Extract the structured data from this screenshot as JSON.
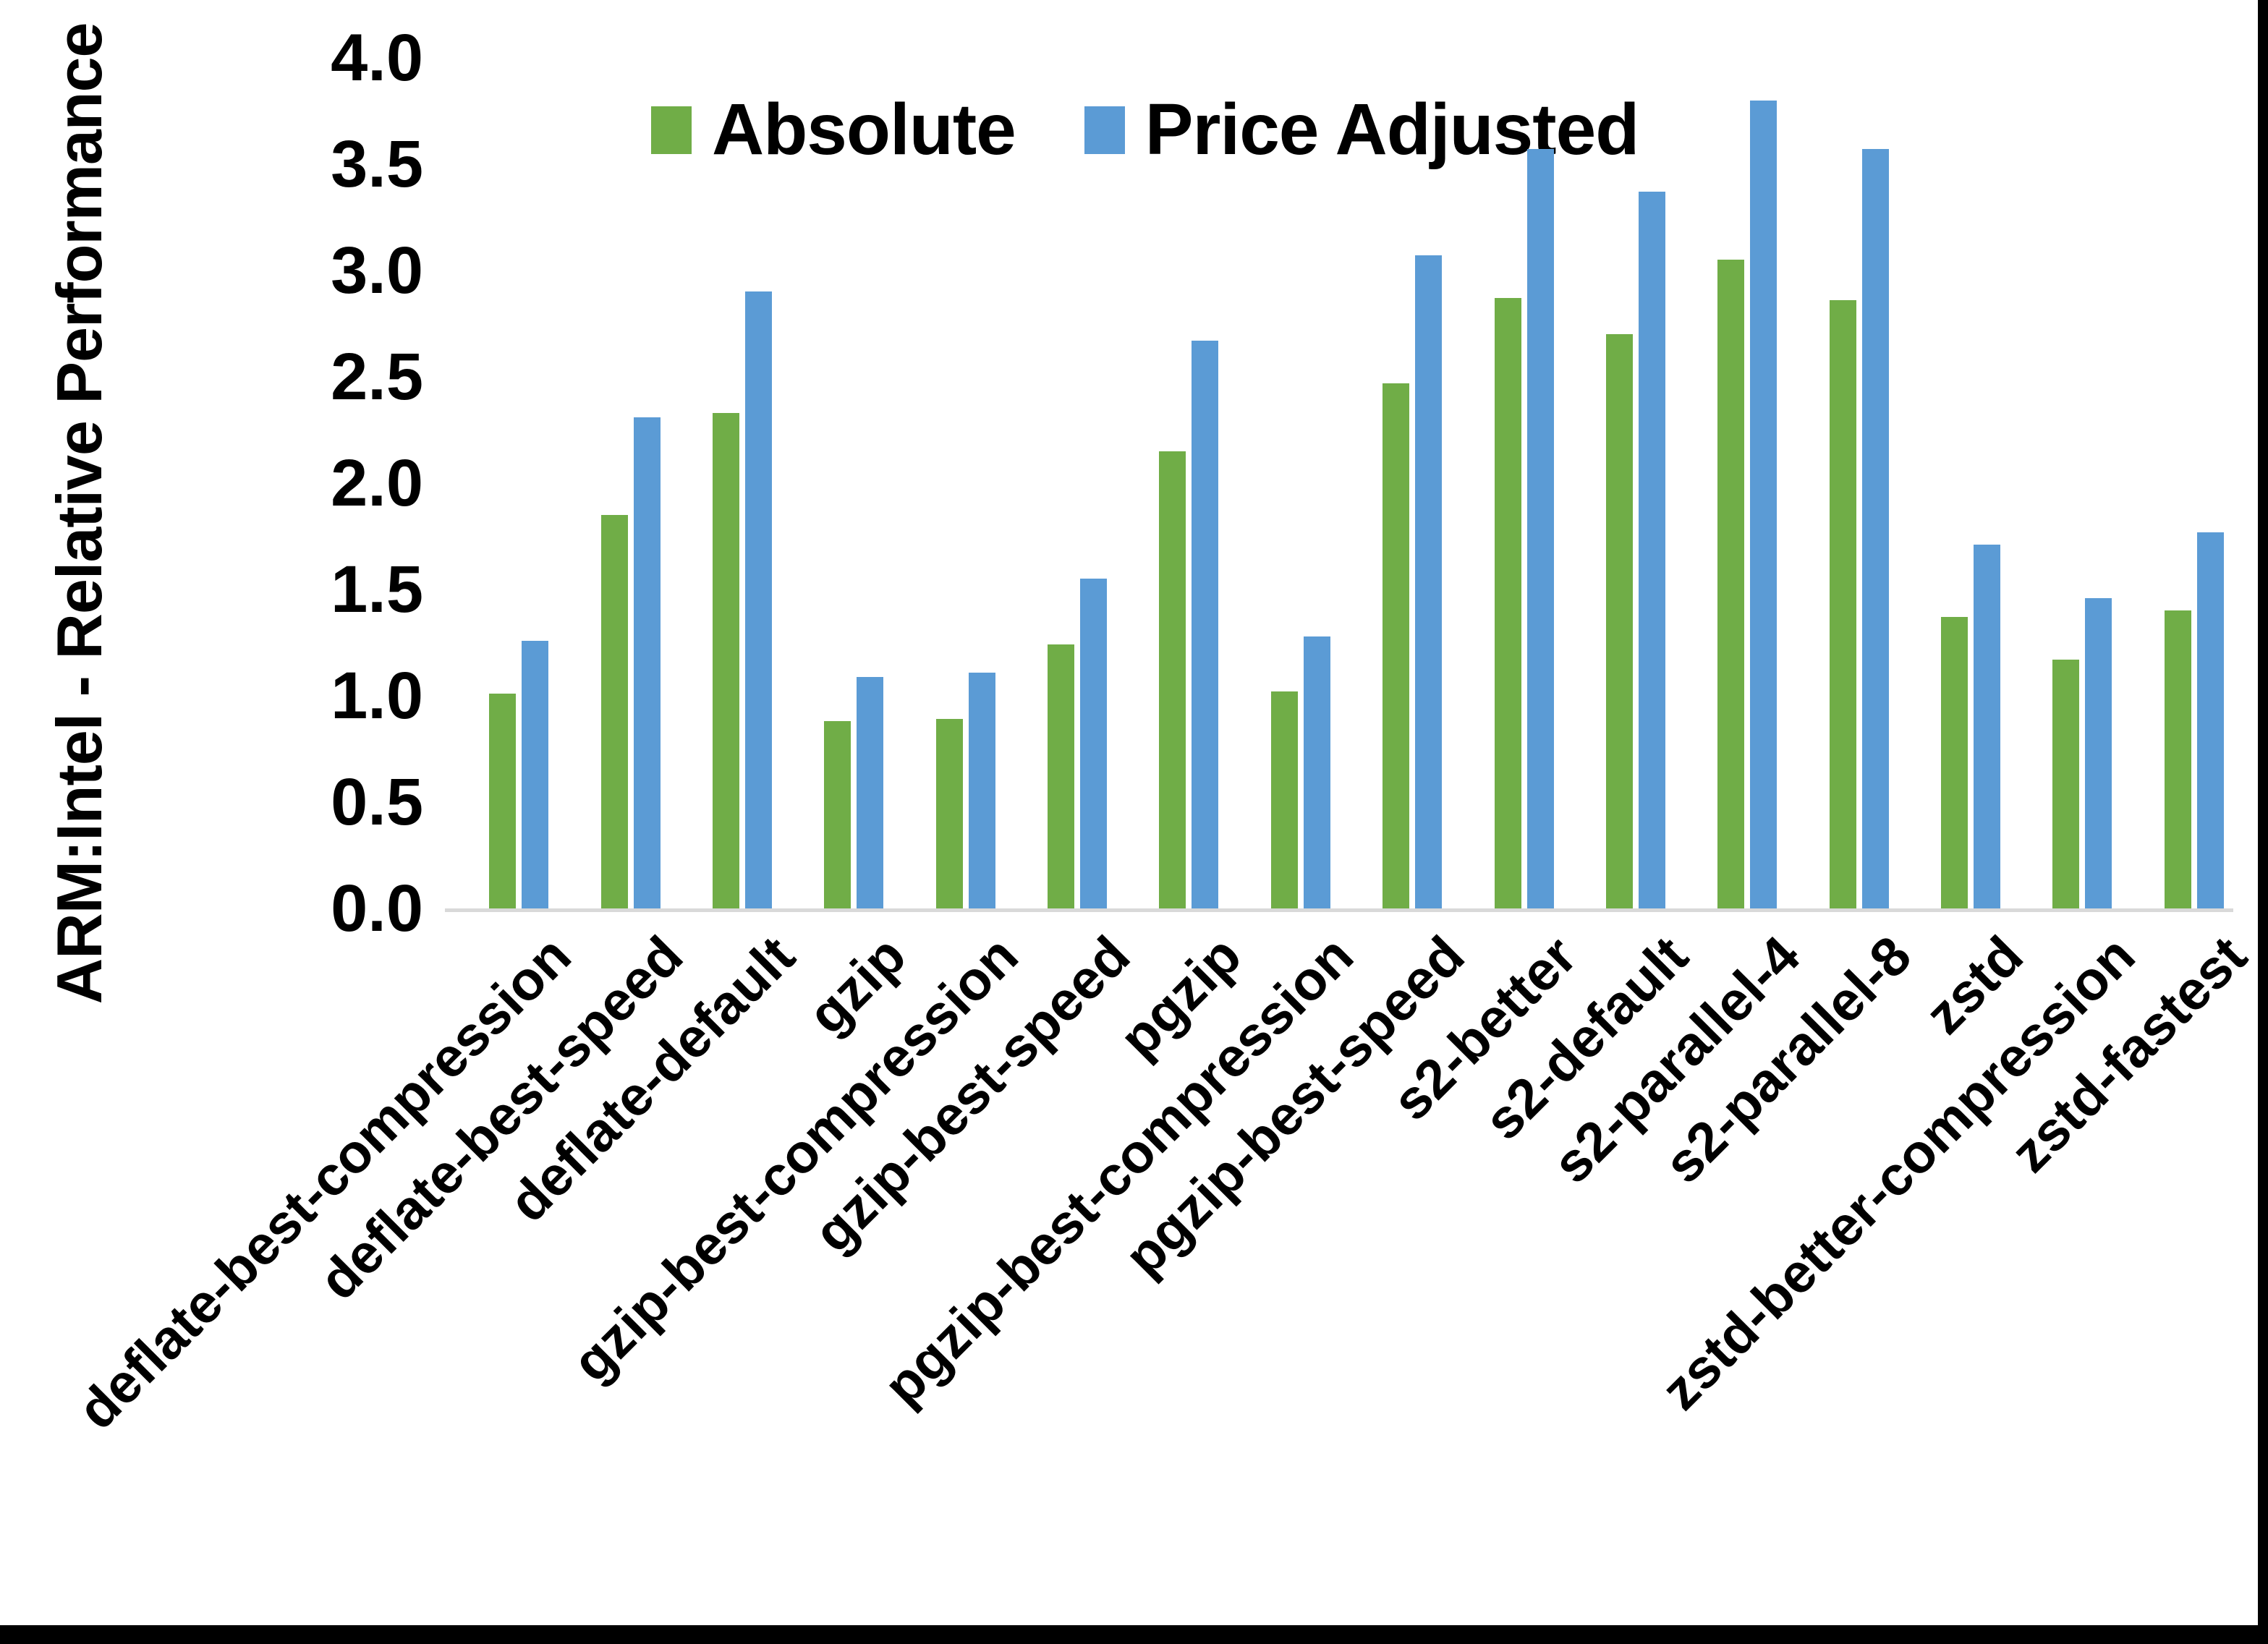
{
  "chart_data": {
    "type": "bar",
    "title": "",
    "xlabel": "",
    "ylabel": "ARM:Intel - Relative Performance",
    "ylim": [
      0.0,
      4.0
    ],
    "ytick_step": 0.5,
    "ytick_labels": [
      "0.0",
      "0.5",
      "1.0",
      "1.5",
      "2.0",
      "2.5",
      "3.0",
      "3.5",
      "4.0"
    ],
    "grid": false,
    "legend_position": "top-center",
    "categories": [
      "deflate-best-compression",
      "deflate-best-speed",
      "deflate-default",
      "gzip",
      "gzip-best-compression",
      "gzip-best-speed",
      "pgzip",
      "pgzip-best-compression",
      "pgzip-best-speed",
      "s2-better",
      "s2-default",
      "s2-parallel-4",
      "s2-parallel-8",
      "zstd",
      "zstd-better-compression",
      "zstd-fastest"
    ],
    "series": [
      {
        "name": "Absolute",
        "color": "#70AD47",
        "values": [
          1.01,
          1.85,
          2.33,
          0.88,
          0.89,
          1.24,
          2.15,
          1.02,
          2.47,
          2.87,
          2.7,
          3.05,
          2.86,
          1.37,
          1.17,
          1.4
        ]
      },
      {
        "name": "Price Adjusted",
        "color": "#5B9BD5",
        "values": [
          1.26,
          2.31,
          2.9,
          1.09,
          1.11,
          1.55,
          2.67,
          1.28,
          3.07,
          3.57,
          3.37,
          3.8,
          3.57,
          1.71,
          1.46,
          1.77
        ]
      }
    ],
    "colors": {
      "axis_line": "#D9D9D9",
      "text": "#000000",
      "background": "#FFFFFF",
      "frame_border": "#000000"
    }
  }
}
